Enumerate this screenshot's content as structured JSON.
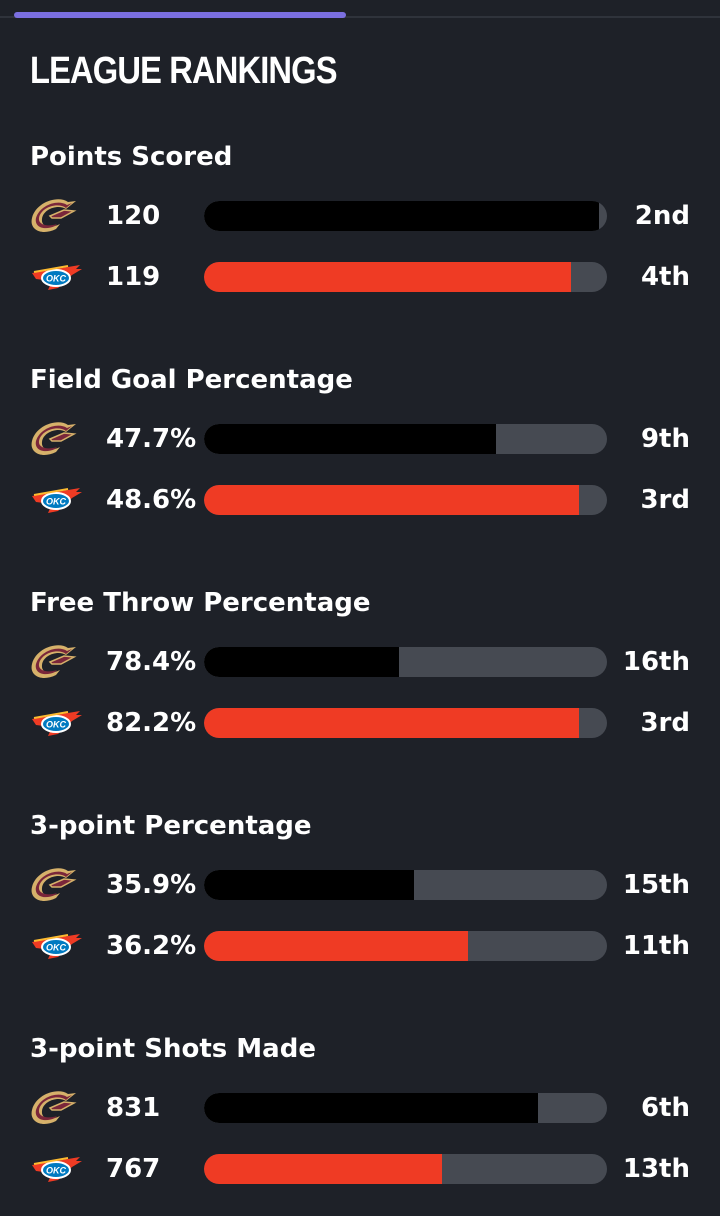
{
  "header": {
    "title": "LEAGUE RANKINGS"
  },
  "colors": {
    "cle_bar": "#000000",
    "okc_bar": "#ef3b24",
    "track": "#464a52",
    "background": "#1e2128"
  },
  "sections": [
    {
      "title": "Points Scored",
      "teams": [
        {
          "team": "cle",
          "logo": "cavaliers-logo-icon",
          "value": "120",
          "rank": "2nd",
          "fill": 0.98
        },
        {
          "team": "okc",
          "logo": "thunder-logo-icon",
          "value": "119",
          "rank": "4th",
          "fill": 0.91
        }
      ]
    },
    {
      "title": "Field Goal Percentage",
      "teams": [
        {
          "team": "cle",
          "logo": "cavaliers-logo-icon",
          "value": "47.7%",
          "rank": "9th",
          "fill": 0.725
        },
        {
          "team": "okc",
          "logo": "thunder-logo-icon",
          "value": "48.6%",
          "rank": "3rd",
          "fill": 0.93
        }
      ]
    },
    {
      "title": "Free Throw Percentage",
      "teams": [
        {
          "team": "cle",
          "logo": "cavaliers-logo-icon",
          "value": "78.4%",
          "rank": "16th",
          "fill": 0.485
        },
        {
          "team": "okc",
          "logo": "thunder-logo-icon",
          "value": "82.2%",
          "rank": "3rd",
          "fill": 0.93
        }
      ]
    },
    {
      "title": "3-point Percentage",
      "teams": [
        {
          "team": "cle",
          "logo": "cavaliers-logo-icon",
          "value": "35.9%",
          "rank": "15th",
          "fill": 0.52
        },
        {
          "team": "okc",
          "logo": "thunder-logo-icon",
          "value": "36.2%",
          "rank": "11th",
          "fill": 0.655
        }
      ]
    },
    {
      "title": "3-point Shots Made",
      "teams": [
        {
          "team": "cle",
          "logo": "cavaliers-logo-icon",
          "value": "831",
          "rank": "6th",
          "fill": 0.83
        },
        {
          "team": "okc",
          "logo": "thunder-logo-icon",
          "value": "767",
          "rank": "13th",
          "fill": 0.59
        }
      ]
    }
  ]
}
